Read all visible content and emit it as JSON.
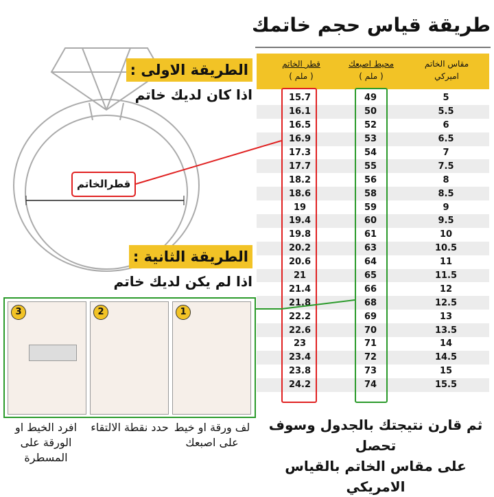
{
  "title": "طريقة قياس حجم خاتمك",
  "table": {
    "headers": {
      "diameter": "قطر الخاتم",
      "diameter_unit": "( ملم )",
      "circumference": "محيط اصبعك",
      "circumference_unit": "( ملم )",
      "us_size": "مقاس الخاتم",
      "us_size_sub": "اميركي"
    },
    "rows": [
      [
        "15.7",
        "49",
        "5"
      ],
      [
        "16.1",
        "50",
        "5.5"
      ],
      [
        "16.5",
        "52",
        "6"
      ],
      [
        "16.9",
        "53",
        "6.5"
      ],
      [
        "17.3",
        "54",
        "7"
      ],
      [
        "17.7",
        "55",
        "7.5"
      ],
      [
        "18.2",
        "56",
        "8"
      ],
      [
        "18.6",
        "58",
        "8.5"
      ],
      [
        "19",
        "59",
        "9"
      ],
      [
        "19.4",
        "60",
        "9.5"
      ],
      [
        "19.8",
        "61",
        "10"
      ],
      [
        "20.2",
        "63",
        "10.5"
      ],
      [
        "20.6",
        "64",
        "11"
      ],
      [
        "21",
        "65",
        "11.5"
      ],
      [
        "21.4",
        "66",
        "12"
      ],
      [
        "21.8",
        "68",
        "12.5"
      ],
      [
        "22.2",
        "69",
        "13"
      ],
      [
        "22.6",
        "70",
        "13.5"
      ],
      [
        "23",
        "71",
        "14"
      ],
      [
        "23.4",
        "72",
        "14.5"
      ],
      [
        "23.8",
        "73",
        "15"
      ],
      [
        "24.2",
        "74",
        "15.5"
      ]
    ]
  },
  "method1": {
    "label": "الطريقة الاولى :",
    "text": "اذا كان لديك خاتم",
    "diameter_label": "قطرالخاتم"
  },
  "method2": {
    "label": "الطريقة الثانية :",
    "text": "اذا لم يكن لديك خاتم",
    "steps": [
      {
        "num": "1",
        "caption": "لف ورقة او خيط على اصبعك"
      },
      {
        "num": "2",
        "caption": "حدد نقطة الالتقاء"
      },
      {
        "num": "3",
        "caption": "افرد الخيط او الورقة على المسطرة"
      }
    ]
  },
  "footer": {
    "line1": "ثم قارن نتيجتك بالجدول وسوف تحصل",
    "line2": "على مقاس الخاتم بالقياس الامريكي"
  },
  "colors": {
    "yellow": "#f2c326",
    "red": "#e02020",
    "green": "#2a9a2a"
  }
}
